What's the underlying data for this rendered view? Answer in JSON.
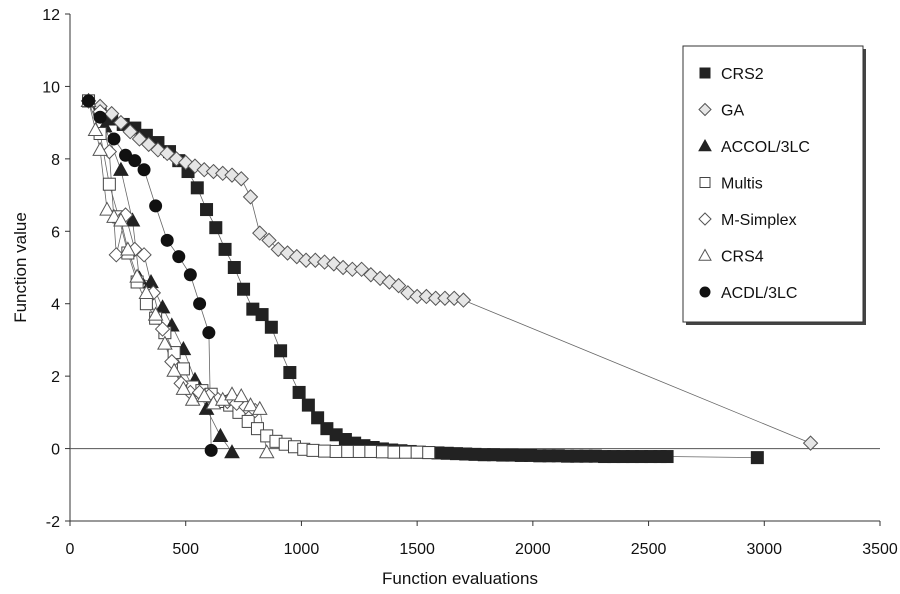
{
  "chart_data": {
    "type": "scatter",
    "title": "",
    "xlabel": "Function evaluations",
    "ylabel": "Function value",
    "xlim": [
      0,
      3500
    ],
    "ylim": [
      -2,
      12
    ],
    "xticks": [
      0,
      500,
      1000,
      1500,
      2000,
      2500,
      3000,
      3500
    ],
    "yticks": [
      -2,
      0,
      2,
      4,
      6,
      8,
      10,
      12
    ],
    "grid": false,
    "legend_position": "top-right",
    "series": [
      {
        "name": "CRS2",
        "marker": "filled-square",
        "points": [
          [
            80,
            9.6
          ],
          [
            130,
            9.3
          ],
          [
            180,
            9.1
          ],
          [
            230,
            8.95
          ],
          [
            280,
            8.85
          ],
          [
            330,
            8.65
          ],
          [
            380,
            8.45
          ],
          [
            430,
            8.2
          ],
          [
            470,
            7.95
          ],
          [
            510,
            7.65
          ],
          [
            550,
            7.2
          ],
          [
            590,
            6.6
          ],
          [
            630,
            6.1
          ],
          [
            670,
            5.5
          ],
          [
            710,
            5.0
          ],
          [
            750,
            4.4
          ],
          [
            790,
            3.85
          ],
          [
            830,
            3.7
          ],
          [
            870,
            3.35
          ],
          [
            910,
            2.7
          ],
          [
            950,
            2.1
          ],
          [
            990,
            1.55
          ],
          [
            1030,
            1.2
          ],
          [
            1070,
            0.85
          ],
          [
            1110,
            0.55
          ],
          [
            1150,
            0.38
          ],
          [
            1190,
            0.25
          ],
          [
            1230,
            0.15
          ],
          [
            1270,
            0.08
          ],
          [
            1310,
            0.03
          ],
          [
            1350,
            -0.01
          ],
          [
            1390,
            -0.04
          ],
          [
            1430,
            -0.06
          ],
          [
            1470,
            -0.08
          ],
          [
            1510,
            -0.1
          ],
          [
            1550,
            -0.11
          ],
          [
            1590,
            -0.12
          ],
          [
            1630,
            -0.13
          ],
          [
            1670,
            -0.14
          ],
          [
            1710,
            -0.15
          ],
          [
            1750,
            -0.16
          ],
          [
            1790,
            -0.17
          ],
          [
            1830,
            -0.17
          ],
          [
            1870,
            -0.18
          ],
          [
            1910,
            -0.18
          ],
          [
            1950,
            -0.19
          ],
          [
            1990,
            -0.19
          ],
          [
            2030,
            -0.2
          ],
          [
            2070,
            -0.2
          ],
          [
            2110,
            -0.2
          ],
          [
            2150,
            -0.21
          ],
          [
            2190,
            -0.21
          ],
          [
            2230,
            -0.21
          ],
          [
            2270,
            -0.21
          ],
          [
            2310,
            -0.22
          ],
          [
            2350,
            -0.22
          ],
          [
            2390,
            -0.22
          ],
          [
            2430,
            -0.22
          ],
          [
            2470,
            -0.22
          ],
          [
            2510,
            -0.22
          ],
          [
            2550,
            -0.22
          ],
          [
            2580,
            -0.22
          ],
          [
            2970,
            -0.25
          ]
        ]
      },
      {
        "name": "GA",
        "marker": "diamond",
        "points": [
          [
            80,
            9.6
          ],
          [
            130,
            9.45
          ],
          [
            180,
            9.25
          ],
          [
            220,
            9.0
          ],
          [
            260,
            8.75
          ],
          [
            300,
            8.55
          ],
          [
            340,
            8.4
          ],
          [
            380,
            8.25
          ],
          [
            420,
            8.15
          ],
          [
            460,
            8.0
          ],
          [
            500,
            7.9
          ],
          [
            540,
            7.8
          ],
          [
            580,
            7.7
          ],
          [
            620,
            7.65
          ],
          [
            660,
            7.6
          ],
          [
            700,
            7.55
          ],
          [
            740,
            7.45
          ],
          [
            780,
            6.95
          ],
          [
            820,
            5.95
          ],
          [
            860,
            5.75
          ],
          [
            900,
            5.5
          ],
          [
            940,
            5.4
          ],
          [
            980,
            5.3
          ],
          [
            1020,
            5.2
          ],
          [
            1060,
            5.2
          ],
          [
            1100,
            5.15
          ],
          [
            1140,
            5.1
          ],
          [
            1180,
            5.0
          ],
          [
            1220,
            4.95
          ],
          [
            1260,
            4.95
          ],
          [
            1300,
            4.8
          ],
          [
            1340,
            4.7
          ],
          [
            1380,
            4.6
          ],
          [
            1420,
            4.5
          ],
          [
            1460,
            4.3
          ],
          [
            1500,
            4.2
          ],
          [
            1540,
            4.2
          ],
          [
            1580,
            4.15
          ],
          [
            1620,
            4.15
          ],
          [
            1660,
            4.15
          ],
          [
            1700,
            4.1
          ],
          [
            3200,
            0.15
          ]
        ]
      },
      {
        "name": "ACCOL/3LC",
        "marker": "filled-triangle",
        "points": [
          [
            80,
            9.6
          ],
          [
            150,
            8.9
          ],
          [
            220,
            7.7
          ],
          [
            270,
            6.3
          ],
          [
            300,
            4.7
          ],
          [
            350,
            4.6
          ],
          [
            400,
            3.9
          ],
          [
            440,
            3.4
          ],
          [
            490,
            2.75
          ],
          [
            540,
            1.9
          ],
          [
            590,
            1.1
          ],
          [
            650,
            0.35
          ],
          [
            700,
            -0.1
          ]
        ]
      },
      {
        "name": "Multis",
        "marker": "open-square",
        "points": [
          [
            80,
            9.6
          ],
          [
            130,
            8.7
          ],
          [
            170,
            7.3
          ],
          [
            210,
            6.4
          ],
          [
            250,
            5.4
          ],
          [
            290,
            4.6
          ],
          [
            330,
            4.0
          ],
          [
            370,
            3.6
          ],
          [
            410,
            3.2
          ],
          [
            450,
            2.65
          ],
          [
            490,
            2.2
          ],
          [
            530,
            1.7
          ],
          [
            570,
            1.6
          ],
          [
            610,
            1.5
          ],
          [
            650,
            1.3
          ],
          [
            690,
            1.2
          ],
          [
            730,
            1.0
          ],
          [
            770,
            0.75
          ],
          [
            810,
            0.55
          ],
          [
            850,
            0.35
          ],
          [
            890,
            0.2
          ],
          [
            930,
            0.12
          ],
          [
            970,
            0.05
          ],
          [
            1010,
            -0.02
          ],
          [
            1050,
            -0.05
          ],
          [
            1100,
            -0.07
          ],
          [
            1150,
            -0.08
          ],
          [
            1200,
            -0.08
          ],
          [
            1250,
            -0.08
          ],
          [
            1300,
            -0.08
          ],
          [
            1350,
            -0.09
          ],
          [
            1400,
            -0.1
          ],
          [
            1450,
            -0.1
          ],
          [
            1500,
            -0.1
          ],
          [
            1550,
            -0.11
          ]
        ]
      },
      {
        "name": "M-Simplex",
        "marker": "diamond-open",
        "points": [
          [
            80,
            9.6
          ],
          [
            130,
            9.3
          ],
          [
            170,
            8.2
          ],
          [
            200,
            5.35
          ],
          [
            240,
            6.45
          ],
          [
            280,
            5.5
          ],
          [
            320,
            5.35
          ],
          [
            360,
            4.3
          ],
          [
            400,
            3.3
          ],
          [
            440,
            2.4
          ],
          [
            480,
            1.8
          ],
          [
            520,
            1.55
          ],
          [
            560,
            1.55
          ],
          [
            600,
            1.45
          ],
          [
            640,
            1.35
          ],
          [
            680,
            1.3
          ],
          [
            720,
            1.25
          ],
          [
            760,
            1.15
          ],
          [
            800,
            1.05
          ]
        ]
      },
      {
        "name": "CRS4",
        "marker": "open-triangle",
        "points": [
          [
            80,
            9.6
          ],
          [
            110,
            8.8
          ],
          [
            130,
            8.25
          ],
          [
            160,
            6.6
          ],
          [
            190,
            6.4
          ],
          [
            220,
            6.3
          ],
          [
            250,
            5.5
          ],
          [
            290,
            4.75
          ],
          [
            330,
            4.3
          ],
          [
            370,
            3.7
          ],
          [
            410,
            2.9
          ],
          [
            450,
            2.15
          ],
          [
            490,
            1.65
          ],
          [
            530,
            1.35
          ],
          [
            580,
            1.45
          ],
          [
            620,
            1.25
          ],
          [
            660,
            1.35
          ],
          [
            700,
            1.5
          ],
          [
            740,
            1.45
          ],
          [
            780,
            1.2
          ],
          [
            820,
            1.1
          ],
          [
            850,
            -0.1
          ]
        ]
      },
      {
        "name": "ACDL/3LC",
        "marker": "filled-circle",
        "points": [
          [
            80,
            9.6
          ],
          [
            130,
            9.15
          ],
          [
            190,
            8.55
          ],
          [
            240,
            8.1
          ],
          [
            280,
            7.95
          ],
          [
            320,
            7.7
          ],
          [
            370,
            6.7
          ],
          [
            420,
            5.75
          ],
          [
            470,
            5.3
          ],
          [
            520,
            4.8
          ],
          [
            560,
            4.0
          ],
          [
            600,
            3.2
          ],
          [
            610,
            -0.05
          ]
        ]
      }
    ]
  }
}
